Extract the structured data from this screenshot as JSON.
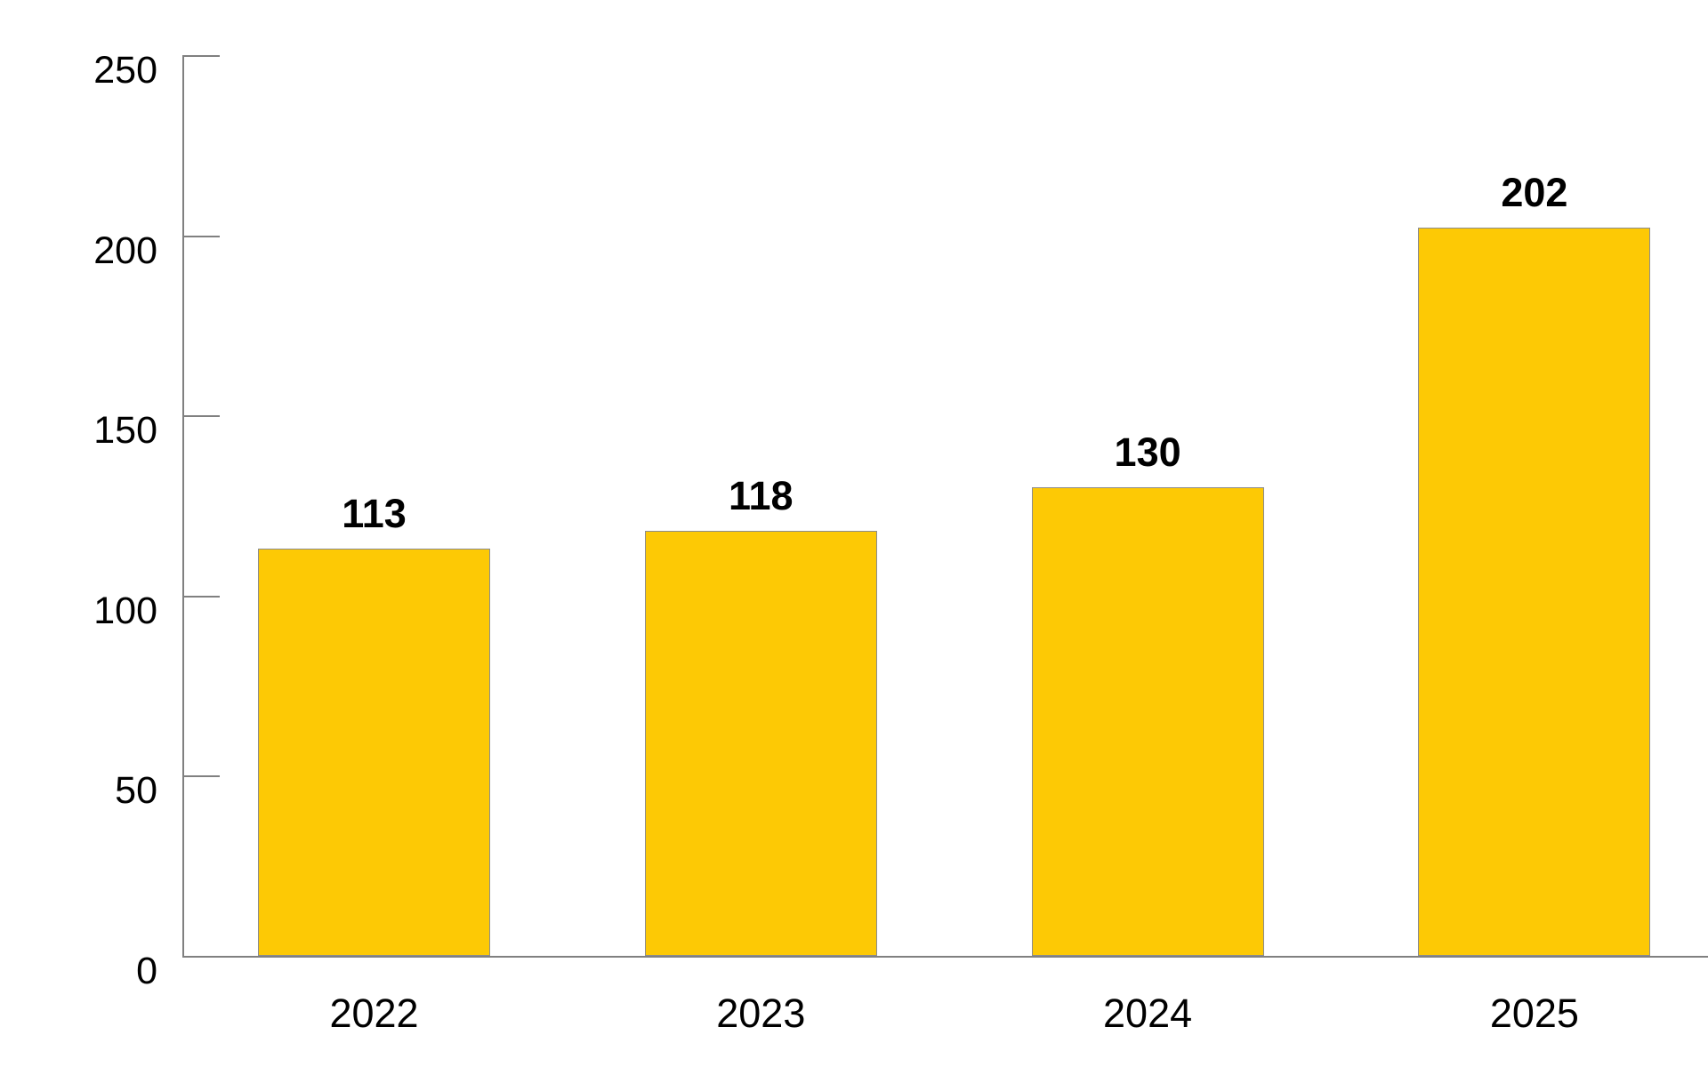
{
  "chart_data": {
    "type": "bar",
    "title": "",
    "xlabel": "",
    "ylabel": "",
    "categories": [
      "2022",
      "2023",
      "2024",
      "2025"
    ],
    "values": [
      113,
      118,
      130,
      202
    ],
    "bar_value_labels": [
      "113",
      "118",
      "130",
      "202"
    ],
    "ylim": [
      0,
      250
    ],
    "yticks": [
      0,
      50,
      100,
      150,
      200,
      250
    ],
    "ytick_labels": [
      "0",
      "50",
      "100",
      "150",
      "200",
      "250"
    ],
    "grid": false,
    "legend_position": "none",
    "colors": {
      "bar_fill": "#FDC905",
      "bar_border": "#8C8C8C",
      "axis_line": "#808080",
      "label_text": "#000000",
      "background": "#FFFFFF"
    }
  }
}
